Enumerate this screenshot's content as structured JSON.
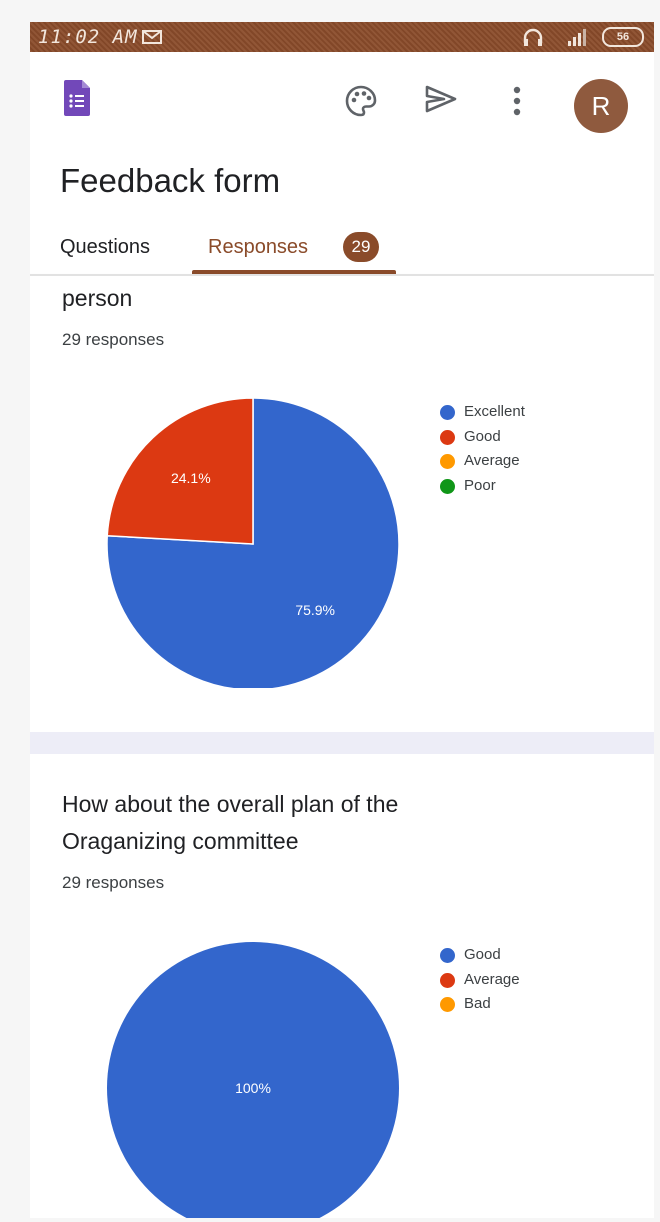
{
  "status_bar": {
    "time": "11:02 AM",
    "battery": "56"
  },
  "toolbar": {
    "avatar_letter": "R"
  },
  "form": {
    "title": "Feedback form"
  },
  "tabs": {
    "questions": "Questions",
    "responses": "Responses",
    "responses_count": "29"
  },
  "cards": [
    {
      "title_lines": [
        "person"
      ],
      "responses": "29 responses",
      "legend": [
        {
          "label": "Excellent",
          "color": "#3366cc"
        },
        {
          "label": "Good",
          "color": "#dc3912"
        },
        {
          "label": "Average",
          "color": "#ff9900"
        },
        {
          "label": "Poor",
          "color": "#109618"
        }
      ]
    },
    {
      "title_lines": [
        "How about the overall plan of the",
        "Oraganizing committee"
      ],
      "responses": "29 responses",
      "legend": [
        {
          "label": "Good",
          "color": "#3366cc"
        },
        {
          "label": "Average",
          "color": "#dc3912"
        },
        {
          "label": "Bad",
          "color": "#ff9900"
        }
      ]
    }
  ],
  "chart_data": [
    {
      "type": "pie",
      "categories": [
        "Excellent",
        "Good",
        "Average",
        "Poor"
      ],
      "values": [
        75.9,
        24.1,
        0,
        0
      ],
      "labels": [
        "75.9%",
        "24.1%",
        "",
        ""
      ],
      "colors": [
        "#3366cc",
        "#dc3912",
        "#ff9900",
        "#109618"
      ],
      "legend_position": "right"
    },
    {
      "type": "pie",
      "categories": [
        "Good",
        "Average",
        "Bad"
      ],
      "values": [
        100,
        0,
        0
      ],
      "labels": [
        "100%",
        "",
        ""
      ],
      "colors": [
        "#3366cc",
        "#dc3912",
        "#ff9900"
      ],
      "legend_position": "right"
    }
  ]
}
